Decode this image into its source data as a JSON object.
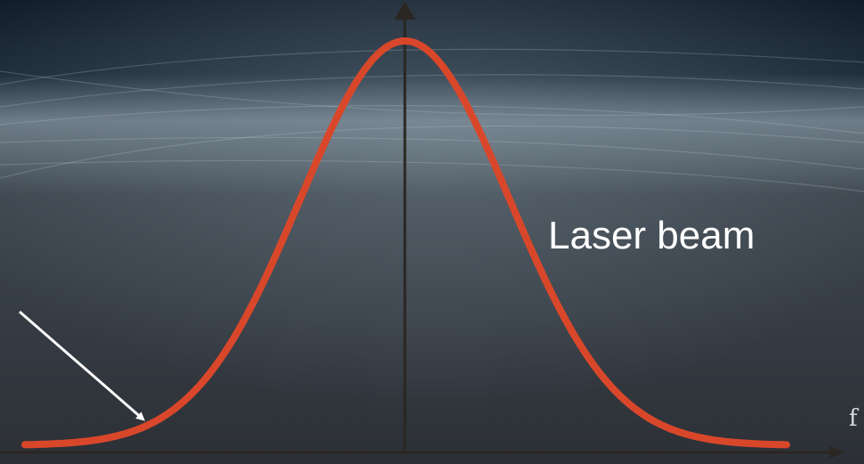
{
  "diagram": {
    "label": "Laser beam",
    "x_axis_letter": "f",
    "curve_color": "#d9472b",
    "axis_color": "#2a2622",
    "arrow_color": "#ffffff",
    "shape": "gaussian"
  }
}
